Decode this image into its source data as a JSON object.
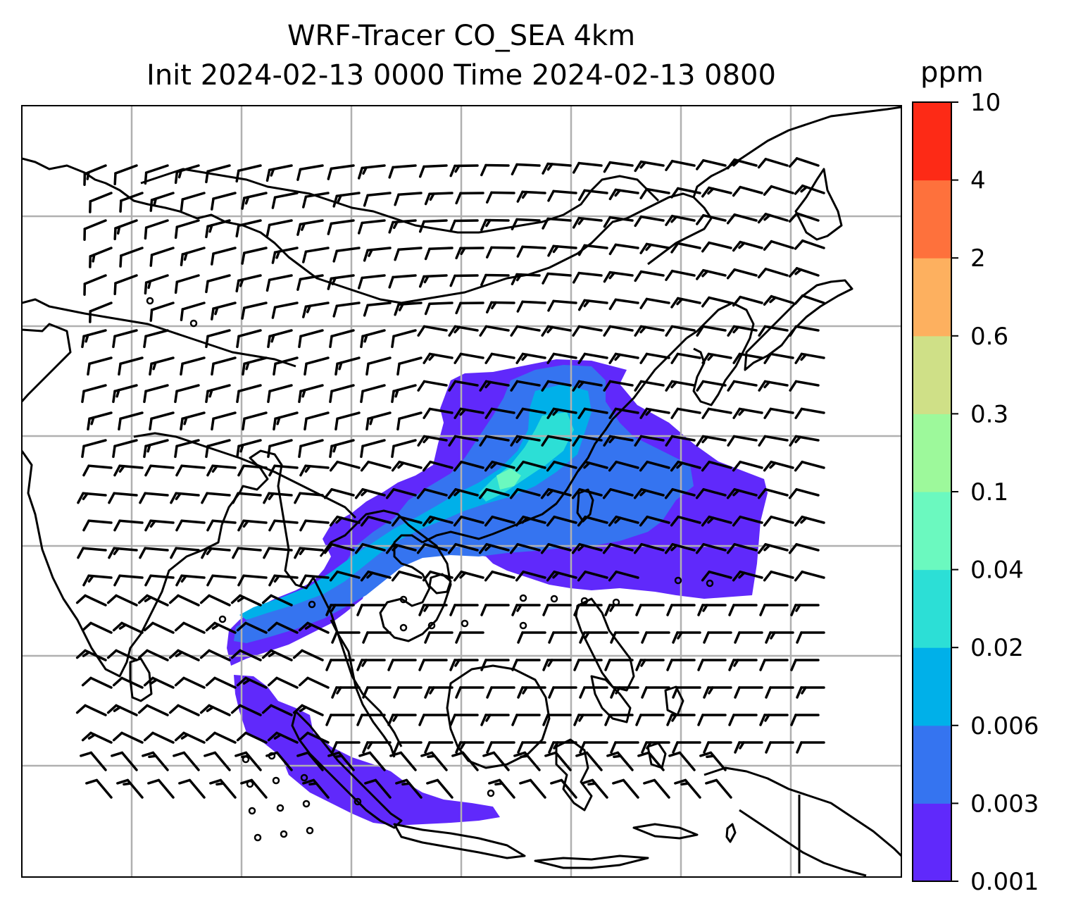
{
  "title": {
    "line1": "WRF-Tracer CO_SEA 4km",
    "line2": "Init 2024-02-13 0000 Time 2024-02-13 0800"
  },
  "colorbar": {
    "unit": "ppm",
    "levels": [
      "0.001",
      "0.003",
      "0.006",
      "0.02",
      "0.04",
      "0.1",
      "0.3",
      "0.6",
      "2",
      "4",
      "10"
    ],
    "colors": [
      "#6029fb",
      "#3574f0",
      "#00b0e9",
      "#2cdfd6",
      "#6bf9bf",
      "#9df99b",
      "#cfe087",
      "#fdb05f",
      "#fe713c",
      "#fd2a16"
    ]
  },
  "map": {
    "gridlines": true,
    "gridline_color": "#b0b0b0",
    "coastline_color": "#000000",
    "field_colors": {
      "lowest": "#6029fb",
      "low": "#3574f0",
      "mid": "#00b0e9",
      "high": "#2cdfd6",
      "peak": "#6bf9bf"
    },
    "wind_barbs": true
  }
}
